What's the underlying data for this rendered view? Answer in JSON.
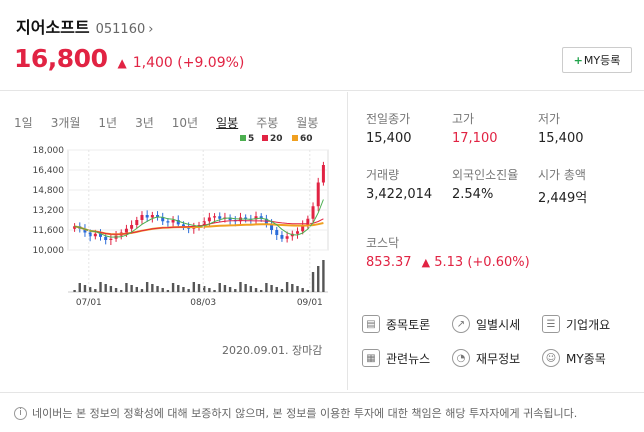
{
  "stock": {
    "name": "지어소프트",
    "code": "051160",
    "chevron": "›"
  },
  "price": {
    "current": "16,800",
    "arrow": "▲",
    "change": "1,400 (+9.09%)"
  },
  "my_button": {
    "plus": "+",
    "label": "MY등록"
  },
  "tabs": [
    "1일",
    "3개월",
    "1년",
    "3년",
    "10년",
    "일봉",
    "주봉",
    "월봉"
  ],
  "active_tab": "일봉",
  "legend": [
    {
      "label": "5",
      "color": "#4caf50"
    },
    {
      "label": "20",
      "color": "#e12343"
    },
    {
      "label": "60",
      "color": "#f0a020"
    }
  ],
  "chart_data": {
    "type": "candlestick",
    "yticks": [
      "18,000",
      "16,400",
      "14,800",
      "13,200",
      "11,600",
      "10,000"
    ],
    "ylim": [
      10000,
      18000
    ],
    "xticks": [
      "07/01",
      "08/03",
      "09/01"
    ],
    "up_color": "#e12343",
    "down_color": "#2b6cd9"
  },
  "date_caption": "2020.09.01. 장마감",
  "stats": {
    "prev_close": {
      "label": "전일종가",
      "value": "15,400"
    },
    "high": {
      "label": "고가",
      "value": "17,100"
    },
    "low": {
      "label": "저가",
      "value": "15,400"
    },
    "volume": {
      "label": "거래량",
      "value": "3,422,014"
    },
    "foreign": {
      "label": "외국인소진율",
      "value": "2.54%"
    },
    "market_cap": {
      "label": "시가 총액",
      "value": "2,449억"
    }
  },
  "index": {
    "label": "코스닥",
    "value": "853.37",
    "arrow": "▲",
    "change": "5.13 (+0.60%)"
  },
  "links": [
    "종목토론",
    "일별시세",
    "기업개요",
    "관련뉴스",
    "재무정보",
    "MY종목"
  ],
  "disclaimer": "네이버는 본 정보의 정확성에 대해 보증하지 않으며, 본 정보를 이용한 투자에 대한 책임은 해당 투자자에게 귀속됩니다."
}
